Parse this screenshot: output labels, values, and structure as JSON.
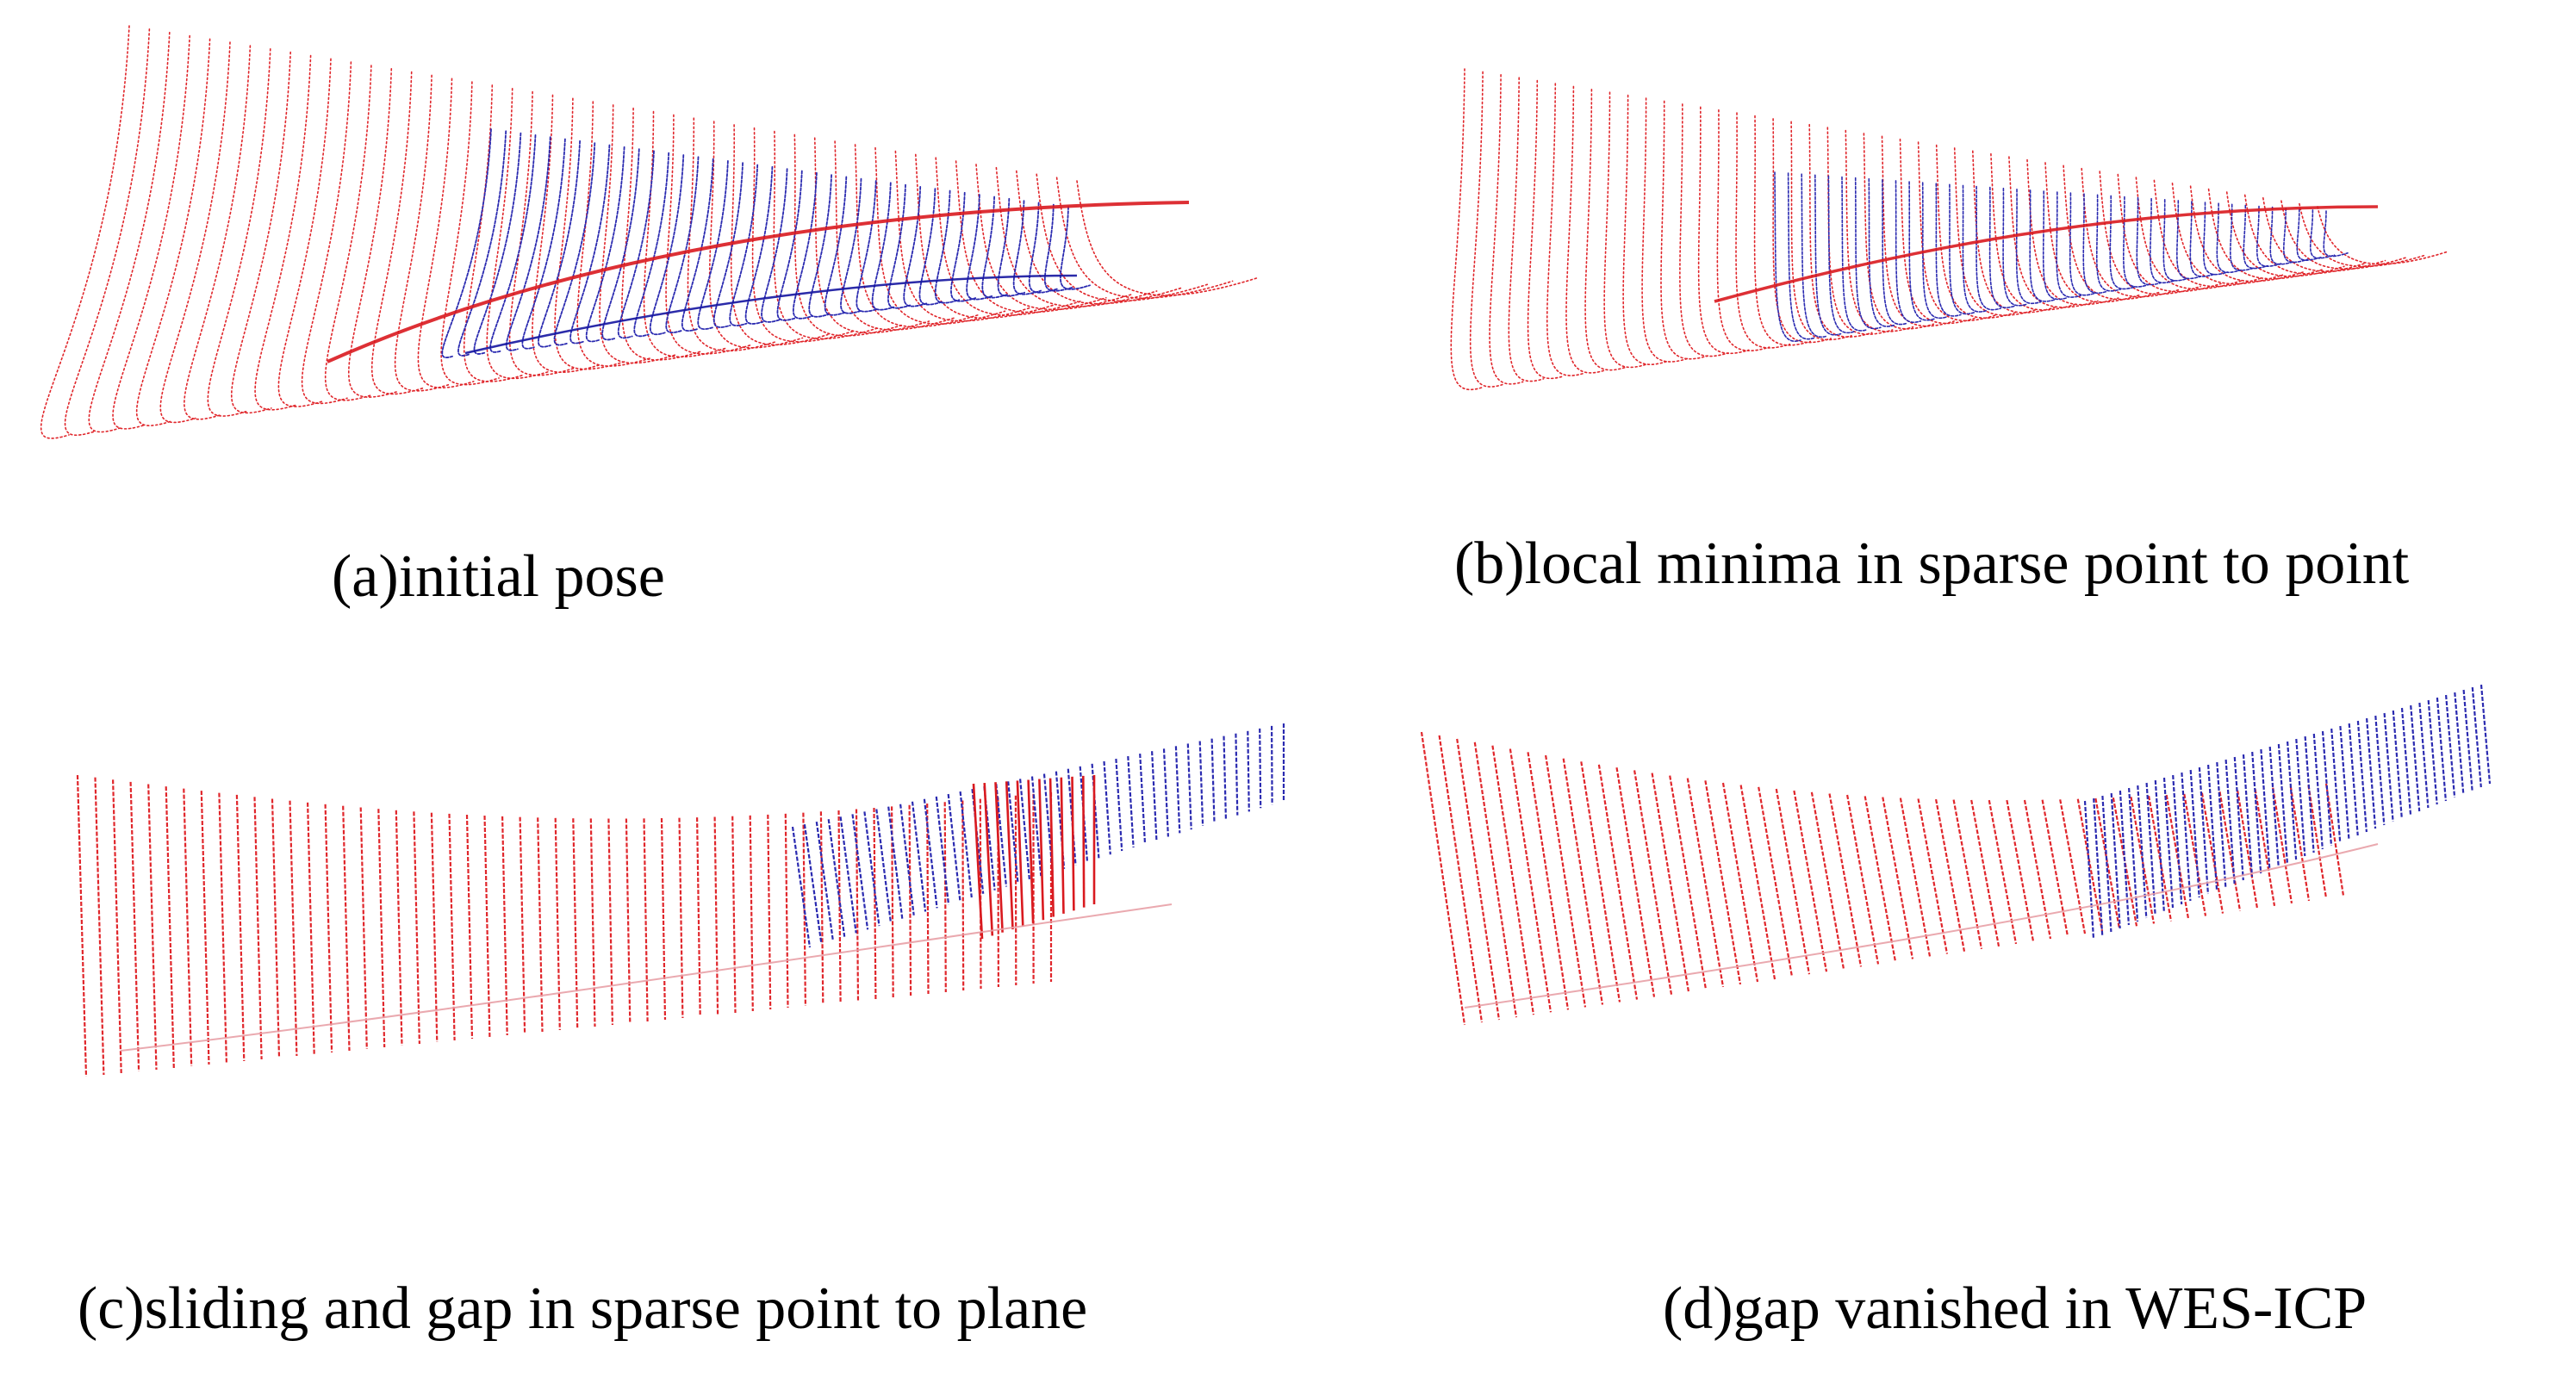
{
  "figure": {
    "colors": {
      "reference_cloud": "#e0262b",
      "reference_cloud_dense": "#d91a1f",
      "moving_cloud": "#2a2ab0",
      "moving_cloud_dense": "#1414a0",
      "background": "#ffffff"
    },
    "panels": [
      {
        "id": "a",
        "caption": "(a)initial pose"
      },
      {
        "id": "b",
        "caption": "(b)local minima in sparse point to point"
      },
      {
        "id": "c",
        "caption": "(c)sliding and gap in sparse point to plane"
      },
      {
        "id": "d",
        "caption": "(d)gap vanished in WES-ICP"
      }
    ]
  }
}
